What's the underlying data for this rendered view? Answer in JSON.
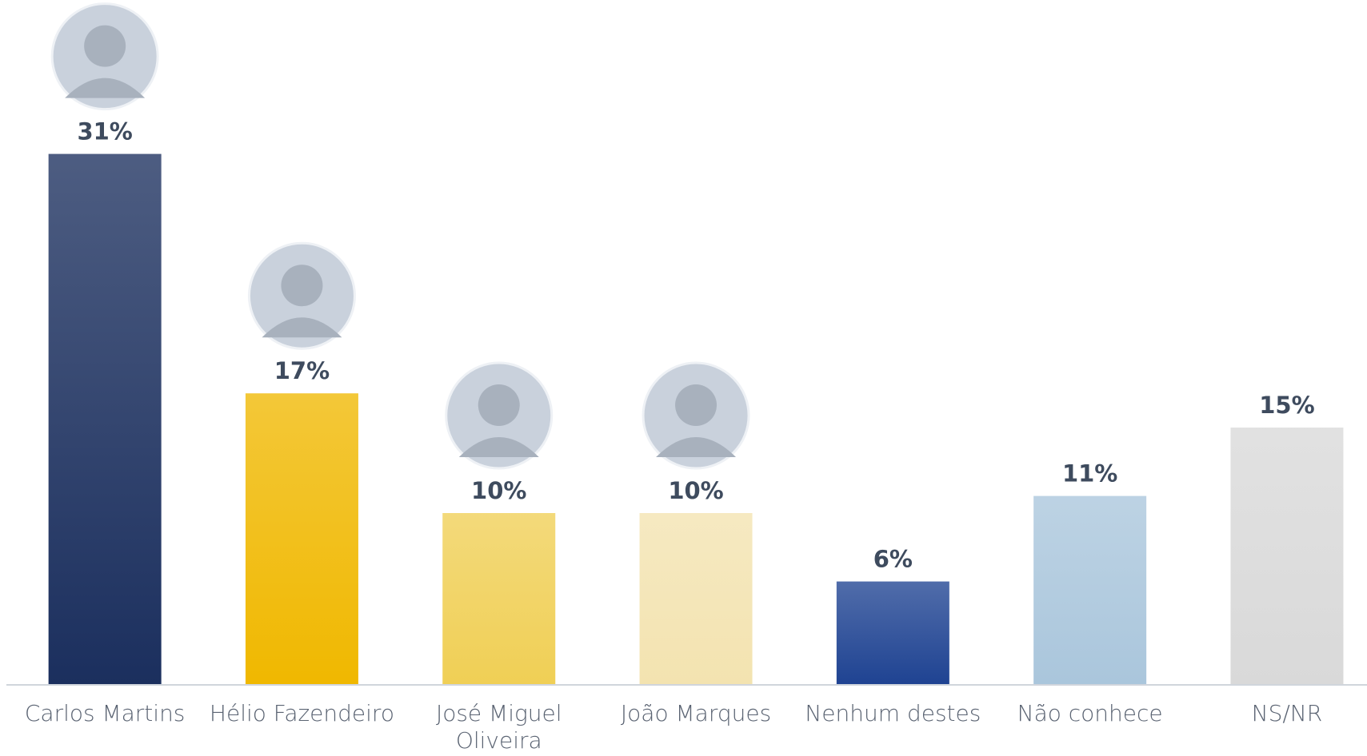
{
  "chart_data": {
    "type": "bar",
    "categories": [
      "Carlos Martins",
      "Hélio Fazendeiro",
      "José Miguel Oliveira",
      "João Marques",
      "Nenhum destes",
      "Não conhece",
      "NS/NR"
    ],
    "values": [
      31,
      17,
      10,
      10,
      6,
      11,
      15
    ],
    "value_labels": [
      "31%",
      "17%",
      "10%",
      "10%",
      "6%",
      "11%",
      "15%"
    ],
    "colors": [
      "#1b2f5e",
      "#f0b800",
      "#f0cf55",
      "#f3e3b0",
      "#1f4392",
      "#aac6dc",
      "#d9d9d9"
    ],
    "ylim": [
      0,
      40
    ]
  }
}
